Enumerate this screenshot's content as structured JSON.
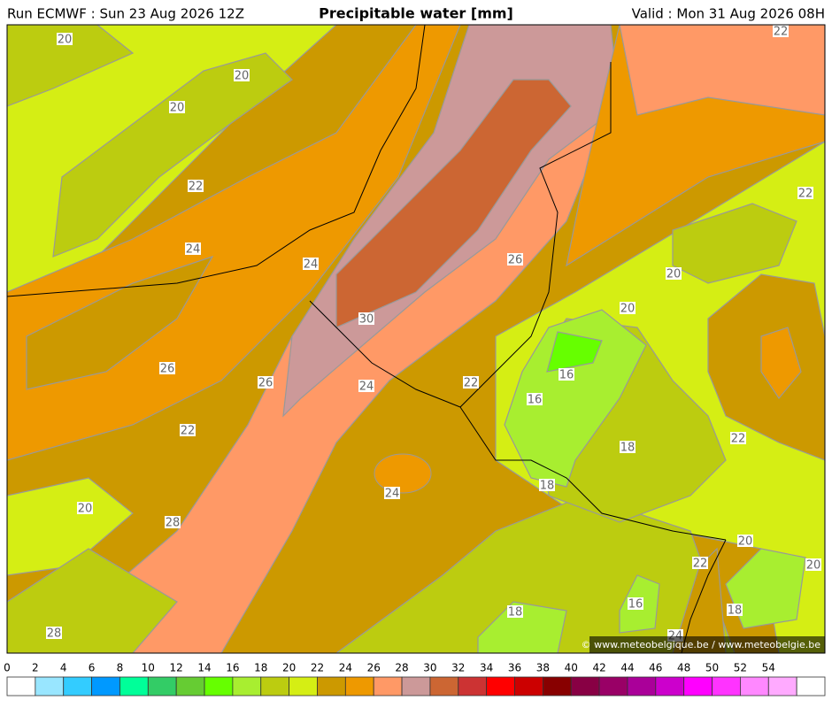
{
  "header": {
    "run": "Run ECMWF : Sun 23 Aug 2026 12Z",
    "title": "Precipitable water [mm]",
    "valid": "Valid : Mon 31 Aug 2026 08H"
  },
  "map": {
    "contour_labels": [
      20,
      20,
      20,
      22,
      24,
      24,
      26,
      30,
      26,
      26,
      24,
      22,
      16,
      16,
      20,
      20,
      22,
      22,
      22,
      18,
      22,
      18,
      24,
      20,
      28,
      20,
      22,
      20,
      16,
      18,
      18,
      28,
      24
    ],
    "copyright": "© www.meteobelgique.be / www.meteobelgie.be"
  },
  "legend": {
    "ticks": [
      0,
      2,
      4,
      6,
      8,
      10,
      12,
      14,
      16,
      18,
      20,
      22,
      24,
      26,
      28,
      30,
      32,
      34,
      36,
      38,
      40,
      42,
      44,
      46,
      48,
      50,
      52,
      54
    ],
    "colors": [
      "#ffffff",
      "#99e6ff",
      "#33ccff",
      "#0099ff",
      "#00ff99",
      "#33cc66",
      "#66cc33",
      "#66ff00",
      "#a8ee30",
      "#bccc10",
      "#d5ee14",
      "#cc9900",
      "#ee9900",
      "#ff9966",
      "#cc9999",
      "#cc6633",
      "#cc3333",
      "#ff0000",
      "#cc0000",
      "#880000",
      "#880044",
      "#990066",
      "#aa0099",
      "#cc00cc",
      "#ff00ff",
      "#ff33ff",
      "#ff88ff",
      "#ffaaff",
      "#ffffff"
    ]
  }
}
